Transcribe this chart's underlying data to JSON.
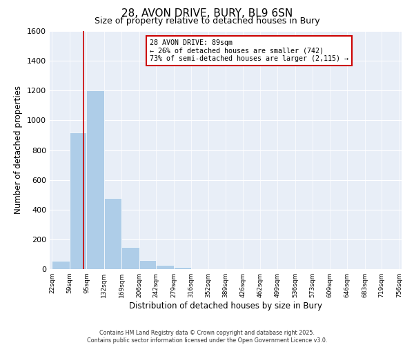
{
  "title": "28, AVON DRIVE, BURY, BL9 6SN",
  "subtitle": "Size of property relative to detached houses in Bury",
  "xlabel": "Distribution of detached houses by size in Bury",
  "ylabel": "Number of detached properties",
  "bar_values": [
    55,
    920,
    1200,
    480,
    150,
    60,
    30,
    15,
    0,
    0,
    0,
    0,
    0,
    0,
    0,
    0,
    0,
    0,
    0,
    0
  ],
  "bar_edges": [
    22,
    59,
    95,
    132,
    169,
    206,
    242,
    279,
    316,
    352,
    389,
    426,
    462,
    499,
    536,
    573,
    609,
    646,
    683,
    719,
    756
  ],
  "tick_labels": [
    "22sqm",
    "59sqm",
    "95sqm",
    "132sqm",
    "169sqm",
    "206sqm",
    "242sqm",
    "279sqm",
    "316sqm",
    "352sqm",
    "389sqm",
    "426sqm",
    "462sqm",
    "499sqm",
    "536sqm",
    "573sqm",
    "609sqm",
    "646sqm",
    "683sqm",
    "719sqm",
    "756sqm"
  ],
  "property_size": 89,
  "bar_color": "#aecde8",
  "bar_edge_color": "#aecde8",
  "vline_color": "#cc0000",
  "vline_x": 89,
  "annotation_title": "28 AVON DRIVE: 89sqm",
  "annotation_line1": "← 26% of detached houses are smaller (742)",
  "annotation_line2": "73% of semi-detached houses are larger (2,115) →",
  "annotation_box_color": "#ffffff",
  "annotation_box_edge": "#cc0000",
  "ylim": [
    0,
    1600
  ],
  "yticks": [
    0,
    200,
    400,
    600,
    800,
    1000,
    1200,
    1400,
    1600
  ],
  "background_color": "#e8eef7",
  "footer1": "Contains HM Land Registry data © Crown copyright and database right 2025.",
  "footer2": "Contains public sector information licensed under the Open Government Licence v3.0."
}
